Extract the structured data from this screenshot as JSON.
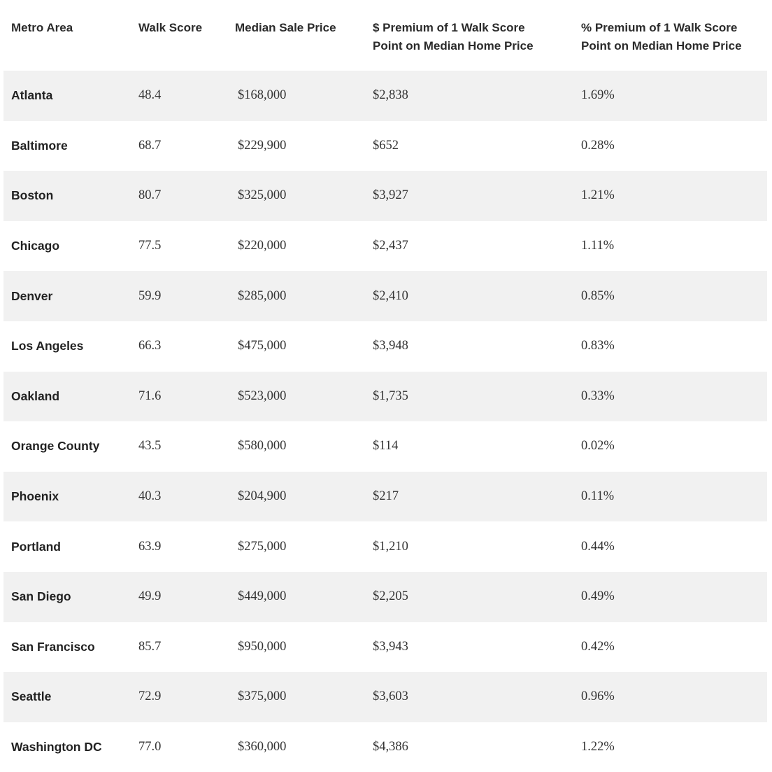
{
  "table": {
    "headers": [
      "Metro Area",
      "Walk Score",
      "Median Sale Price",
      "$ Premium of 1 Walk Score\nPoint on Median Home Price",
      "% Premium of 1 Walk Score\nPoint  on Median Home Price"
    ],
    "rows": [
      {
        "metro": "Atlanta",
        "walk_score": "48.4",
        "median_price": "$168,000",
        "dollar_premium": "$2,838",
        "pct_premium": "1.69%"
      },
      {
        "metro": "Baltimore",
        "walk_score": "68.7",
        "median_price": "$229,900",
        "dollar_premium": "$652",
        "pct_premium": "0.28%"
      },
      {
        "metro": "Boston",
        "walk_score": "80.7",
        "median_price": "$325,000",
        "dollar_premium": "$3,927",
        "pct_premium": "1.21%"
      },
      {
        "metro": "Chicago",
        "walk_score": "77.5",
        "median_price": "$220,000",
        "dollar_premium": "$2,437",
        "pct_premium": "1.11%"
      },
      {
        "metro": "Denver",
        "walk_score": "59.9",
        "median_price": "$285,000",
        "dollar_premium": "$2,410",
        "pct_premium": "0.85%"
      },
      {
        "metro": "Los Angeles",
        "walk_score": "66.3",
        "median_price": "$475,000",
        "dollar_premium": "$3,948",
        "pct_premium": "0.83%"
      },
      {
        "metro": "Oakland",
        "walk_score": "71.6",
        "median_price": "$523,000",
        "dollar_premium": "$1,735",
        "pct_premium": "0.33%"
      },
      {
        "metro": "Orange County",
        "walk_score": "43.5",
        "median_price": "$580,000",
        "dollar_premium": "$114",
        "pct_premium": "0.02%"
      },
      {
        "metro": "Phoenix",
        "walk_score": "40.3",
        "median_price": "$204,900",
        "dollar_premium": "$217",
        "pct_premium": "0.11%"
      },
      {
        "metro": "Portland",
        "walk_score": "63.9",
        "median_price": "$275,000",
        "dollar_premium": "$1,210",
        "pct_premium": "0.44%"
      },
      {
        "metro": "San Diego",
        "walk_score": "49.9",
        "median_price": "$449,000",
        "dollar_premium": "$2,205",
        "pct_premium": "0.49%"
      },
      {
        "metro": "San Francisco",
        "walk_score": "85.7",
        "median_price": "$950,000",
        "dollar_premium": "$3,943",
        "pct_premium": "0.42%"
      },
      {
        "metro": "Seattle",
        "walk_score": "72.9",
        "median_price": "$375,000",
        "dollar_premium": "$3,603",
        "pct_premium": "0.96%"
      },
      {
        "metro": "Washington DC",
        "walk_score": "77.0",
        "median_price": "$360,000",
        "dollar_premium": "$4,386",
        "pct_premium": "1.22%"
      }
    ]
  },
  "colors": {
    "shaded_row": "#f1f1f1",
    "plain_row": "#ffffff",
    "text": "#2b2b2b"
  }
}
